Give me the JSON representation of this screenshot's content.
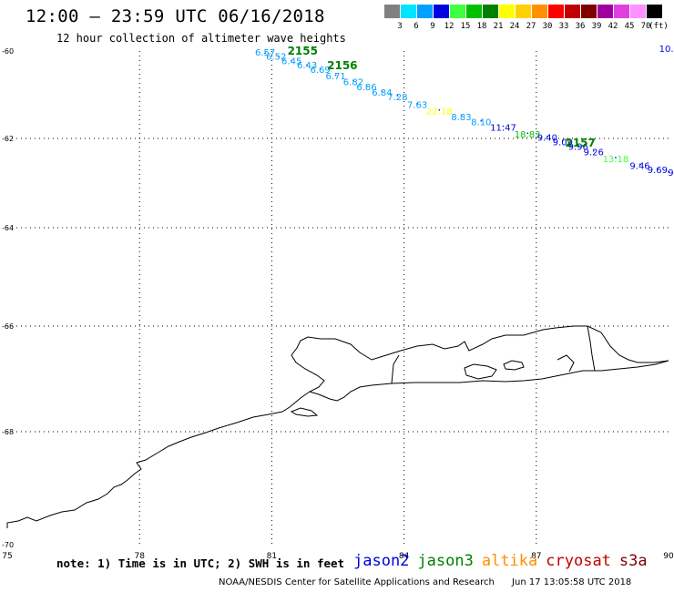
{
  "header": {
    "title": "12:00 – 23:59 UTC 06/16/2018",
    "subtitle": "12 hour collection of altimeter wave heights"
  },
  "legend": {
    "unit": "(ft)",
    "bins": [
      {
        "label": "3",
        "color": "#808080"
      },
      {
        "label": "6",
        "color": "#00e5ff"
      },
      {
        "label": "9",
        "color": "#00a0ff"
      },
      {
        "label": "12",
        "color": "#0000e0"
      },
      {
        "label": "15",
        "color": "#40ff40"
      },
      {
        "label": "18",
        "color": "#00c000"
      },
      {
        "label": "21",
        "color": "#008000"
      },
      {
        "label": "24",
        "color": "#ffff00"
      },
      {
        "label": "27",
        "color": "#ffd000"
      },
      {
        "label": "30",
        "color": "#ff9000"
      },
      {
        "label": "33",
        "color": "#ff0000"
      },
      {
        "label": "36",
        "color": "#c00000"
      },
      {
        "label": "39",
        "color": "#800000"
      },
      {
        "label": "42",
        "color": "#a000a0"
      },
      {
        "label": "45",
        "color": "#e040e0"
      },
      {
        "label": "70",
        "color": "#ff90ff"
      },
      {
        "label": "",
        "color": "#000000"
      }
    ]
  },
  "map": {
    "lon_ticks": [
      "75",
      "78",
      "81",
      "84",
      "87",
      "90"
    ],
    "lat_ticks": [
      "-60",
      "-62",
      "-64",
      "-66",
      "-68",
      "-70"
    ],
    "lon_range": [
      75,
      90
    ],
    "lat_range": [
      -60,
      -70
    ],
    "pass_labels": [
      {
        "text": "2155",
        "color": "#008000",
        "lon": 81.7,
        "lat": -60.08
      },
      {
        "text": "2156",
        "color": "#008000",
        "lon": 82.6,
        "lat": -60.42
      },
      {
        "text": "2157",
        "color": "#008000",
        "lon": 88.0,
        "lat": -62.18
      }
    ],
    "swh_labels": [
      {
        "text": "6.57",
        "color": "#00a0ff",
        "lon": 80.85,
        "lat": -60.1
      },
      {
        "text": "6.52",
        "color": "#00a0ff",
        "lon": 81.1,
        "lat": -60.2
      },
      {
        "text": "6.45",
        "color": "#00a0ff",
        "lon": 81.45,
        "lat": -60.3
      },
      {
        "text": "6.43",
        "color": "#00a0ff",
        "lon": 81.8,
        "lat": -60.4
      },
      {
        "text": "6.69",
        "color": "#00a0ff",
        "lon": 82.1,
        "lat": -60.5
      },
      {
        "text": "6.71",
        "color": "#00a0ff",
        "lon": 82.45,
        "lat": -60.65
      },
      {
        "text": "6.82",
        "color": "#00a0ff",
        "lon": 82.85,
        "lat": -60.78
      },
      {
        "text": "6.86",
        "color": "#00a0ff",
        "lon": 83.15,
        "lat": -60.9
      },
      {
        "text": "6.84",
        "color": "#00a0ff",
        "lon": 83.5,
        "lat": -61.02
      },
      {
        "text": "7.28",
        "color": "#00a0ff",
        "lon": 83.85,
        "lat": -61.12
      },
      {
        "text": "7.63",
        "color": "#00a0ff",
        "lon": 84.3,
        "lat": -61.3
      },
      {
        "text": "22.18",
        "color": "#ffff00",
        "lon": 84.8,
        "lat": -61.45
      },
      {
        "text": "8.83",
        "color": "#00a0ff",
        "lon": 85.3,
        "lat": -61.58
      },
      {
        "text": "8.10",
        "color": "#00a0ff",
        "lon": 85.75,
        "lat": -61.7
      },
      {
        "text": "11.47",
        "color": "#0000e0",
        "lon": 86.25,
        "lat": -61.82
      },
      {
        "text": "18.83",
        "color": "#00c000",
        "lon": 86.8,
        "lat": -61.98
      },
      {
        "text": "9.40",
        "color": "#0000e0",
        "lon": 87.25,
        "lat": -62.05
      },
      {
        "text": "9.09",
        "color": "#0000e0",
        "lon": 87.6,
        "lat": -62.15
      },
      {
        "text": "9.96",
        "color": "#0000e0",
        "lon": 87.95,
        "lat": -62.25
      },
      {
        "text": "9.26",
        "color": "#0000e0",
        "lon": 88.3,
        "lat": -62.38
      },
      {
        "text": "13.18",
        "color": "#40ff40",
        "lon": 88.8,
        "lat": -62.53
      },
      {
        "text": "9.46",
        "color": "#0000e0",
        "lon": 89.35,
        "lat": -62.68
      },
      {
        "text": "9.69",
        "color": "#0000e0",
        "lon": 89.75,
        "lat": -62.78
      },
      {
        "text": "9",
        "color": "#0000e0",
        "lon": 90.05,
        "lat": -62.84
      },
      {
        "text": "10.",
        "color": "#0000e0",
        "lon": 89.95,
        "lat": -60.02
      }
    ],
    "track_dots": [
      [
        80.85,
        -60.05
      ],
      [
        81.15,
        -60.12
      ],
      [
        81.45,
        -60.22
      ],
      [
        81.8,
        -60.32
      ],
      [
        82.1,
        -60.42
      ],
      [
        82.45,
        -60.55
      ],
      [
        82.85,
        -60.68
      ],
      [
        83.15,
        -60.8
      ],
      [
        83.5,
        -60.92
      ],
      [
        83.85,
        -61.02
      ],
      [
        84.3,
        -61.2
      ],
      [
        84.8,
        -61.35
      ],
      [
        85.3,
        -61.48
      ],
      [
        85.75,
        -61.6
      ],
      [
        86.25,
        -61.72
      ],
      [
        86.8,
        -61.88
      ],
      [
        87.25,
        -61.95
      ],
      [
        87.6,
        -62.05
      ],
      [
        87.95,
        -62.15
      ],
      [
        88.3,
        -62.28
      ],
      [
        88.8,
        -62.43
      ],
      [
        89.35,
        -62.58
      ],
      [
        89.75,
        -62.68
      ],
      [
        90.0,
        -62.75
      ]
    ]
  },
  "notes": {
    "text": "note: 1) Time is in UTC; 2) SWH is in feet",
    "satellites": [
      {
        "name": "jason2",
        "color": "#0000e0"
      },
      {
        "name": "jason3",
        "color": "#008000"
      },
      {
        "name": "altika",
        "color": "#ff9000"
      },
      {
        "name": "cryosat",
        "color": "#c00000"
      },
      {
        "name": "s3a",
        "color": "#800000"
      }
    ]
  },
  "footer": {
    "credit": "NOAA/NESDIS Center for Satellite Applications and Research",
    "timestamp": "Jun 17 13:05:58 UTC 2018"
  }
}
